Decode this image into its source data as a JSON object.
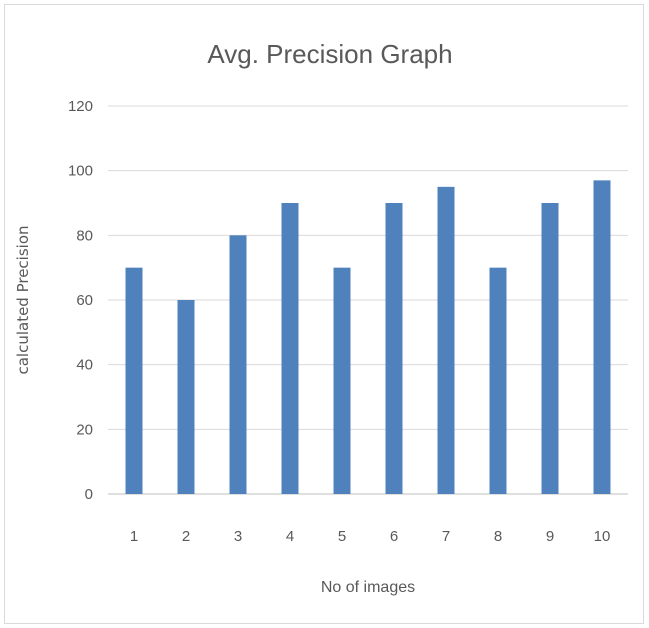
{
  "chart_data": {
    "type": "bar",
    "title": "Avg. Precision Graph",
    "xlabel": "No of images",
    "ylabel": "calculated Precision",
    "categories": [
      "1",
      "2",
      "3",
      "4",
      "5",
      "6",
      "7",
      "8",
      "9",
      "10"
    ],
    "values": [
      70,
      60,
      80,
      90,
      70,
      90,
      95,
      70,
      90,
      97
    ],
    "ylim": [
      0,
      120
    ],
    "yticks": [
      "0",
      "20",
      "40",
      "60",
      "80",
      "100",
      "120"
    ],
    "grid": true,
    "legend": "none",
    "bar_color": "#4f81bd"
  }
}
